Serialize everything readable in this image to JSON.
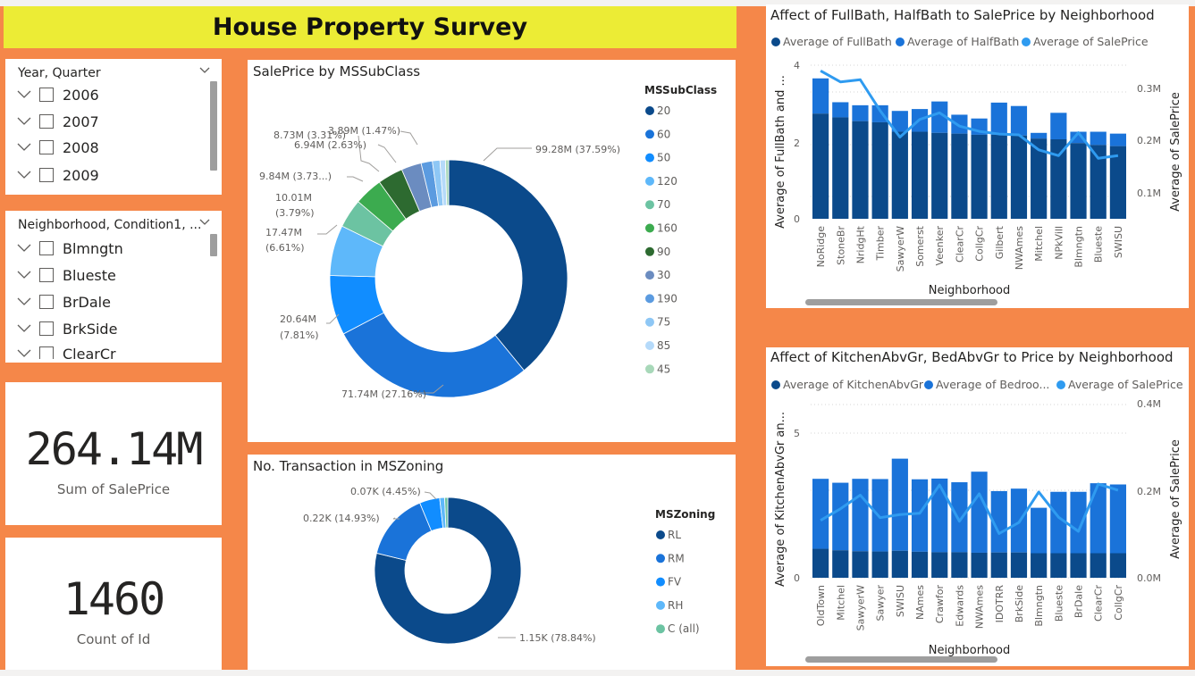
{
  "report_title": "House Property Survey",
  "slicer_year": {
    "title": "Year, Quarter",
    "items": [
      "2006",
      "2007",
      "2008",
      "2009"
    ]
  },
  "slicer_neighborhood": {
    "title": "Neighborhood, Condition1, ...",
    "items": [
      "Blmngtn",
      "Blueste",
      "BrDale",
      "BrkSide",
      "ClearCr"
    ]
  },
  "kpi_saleprice": {
    "value": "264.14M",
    "label": "Sum of SalePrice"
  },
  "kpi_count": {
    "value": "1460",
    "label": "Count of Id"
  },
  "colors": {
    "background": "#f58749",
    "title_bar": "#ecec35",
    "dark_blue": "#0b4a8b",
    "mid_blue": "#1f7fd6",
    "light_blue": "#3aa0ef"
  },
  "saleprice_chart": {
    "title": "SalePrice by MSSubClass",
    "legend_title": "MSSubClass",
    "chart_data": {
      "type": "pie",
      "categories": [
        "20",
        "60",
        "50",
        "120",
        "70",
        "160",
        "90",
        "30",
        "190",
        "75",
        "85",
        "45"
      ],
      "values": [
        99.28,
        71.74,
        20.64,
        17.47,
        10.01,
        9.84,
        8.73,
        6.94,
        3.89,
        2.6,
        1.9,
        1.1
      ],
      "colors": [
        "#0b4a8b",
        "#1a73d9",
        "#118dff",
        "#5eb8fa",
        "#6cc3a2",
        "#3cab4f",
        "#2d6a30",
        "#6b8cc0",
        "#5b9be0",
        "#8ec7f5",
        "#b5dafa",
        "#a8d8b9"
      ],
      "labels": [
        "99.28M (37.59%)",
        "71.74M (27.16%)",
        "20.64M",
        "(7.81%)",
        "17.47M",
        "(6.61%)",
        "10.01M",
        "(3.79%)",
        "9.84M (3.73...)",
        "8.73M (3.31%)",
        "6.94M (2.63%)",
        "3.89M (1.47%)"
      ]
    }
  },
  "mszoning_chart": {
    "title": "No. Transaction in MSZoning",
    "legend_title": "MSZoning",
    "chart_data": {
      "type": "pie",
      "categories": [
        "RL",
        "RM",
        "FV",
        "RH",
        "C (all)"
      ],
      "values": [
        1151,
        218,
        65,
        16,
        10
      ],
      "colors": [
        "#0b4a8b",
        "#1a73d9",
        "#118dff",
        "#5eb8fa",
        "#6cc3a2"
      ],
      "labels": [
        "1.15K (78.84%)",
        "0.22K (14.93%)",
        "0.07K (4.45%)"
      ]
    }
  },
  "fullbath_chart": {
    "title": "Affect of FullBath, HalfBath to SalePrice by Neighborhood",
    "legend": [
      "Average of FullBath",
      "Average of HalfBath",
      "Average of SalePrice"
    ],
    "xlabel": "Neighborhood",
    "ylabel": "Average of FullBath and ...",
    "y2label": "Average of SalePrice",
    "y_ticks": [
      "4",
      "2",
      "0"
    ],
    "y2_ticks": [
      "0.3M",
      "0.2M",
      "0.1M"
    ],
    "chart_data": {
      "type": "bar",
      "categories": [
        "NoRidge",
        "StoneBr",
        "NridgHt",
        "Timber",
        "SawyerW",
        "Somerst",
        "Veenker",
        "ClearCr",
        "CollgCr",
        "Gilbert",
        "NWAmes",
        "Mitchel",
        "NPkVill",
        "Blmngtn",
        "Blueste",
        "SWISU"
      ],
      "series": [
        {
          "name": "Average of FullBath",
          "values": [
            2.78,
            2.68,
            2.58,
            2.55,
            2.3,
            2.3,
            2.27,
            2.25,
            2.22,
            2.22,
            2.2,
            2.12,
            2.1,
            2.0,
            1.95,
            1.92
          ]
        },
        {
          "name": "Average of HalfBath",
          "values": [
            0.93,
            0.4,
            0.42,
            0.45,
            0.55,
            0.6,
            0.83,
            0.5,
            0.43,
            0.85,
            0.78,
            0.15,
            0.7,
            0.3,
            0.35,
            0.33
          ]
        },
        {
          "name": "Average of SalePrice",
          "values": [
            0.335,
            0.31,
            0.315,
            0.245,
            0.185,
            0.225,
            0.24,
            0.21,
            0.198,
            0.192,
            0.19,
            0.156,
            0.143,
            0.195,
            0.137,
            0.143
          ]
        }
      ],
      "ylim": [
        0,
        4.2
      ],
      "y2lim": [
        0,
        0.36
      ]
    }
  },
  "kitchen_chart": {
    "title": "Affect of KitchenAbvGr, BedAbvGr to Price by Neighborhood",
    "legend": [
      "Average of KitchenAbvGr",
      "Average of Bedroo...",
      "Average of SalePrice"
    ],
    "xlabel": "Neighborhood",
    "ylabel": "Average of KitchenAbvGr an...",
    "y2label": "Average of SalePrice",
    "y_ticks": [
      "5",
      "0"
    ],
    "y2_ticks": [
      "0.4M",
      "0.2M",
      "0.0M"
    ],
    "chart_data": {
      "type": "bar",
      "categories": [
        "OldTown",
        "Mitchel",
        "SawyerW",
        "Sawyer",
        "SWISU",
        "NAmes",
        "Crawfor",
        "Edwards",
        "NWAmes",
        "IDOTRR",
        "BrkSide",
        "Blmngtn",
        "Blueste",
        "BrDale",
        "ClearCr",
        "CollgCr"
      ],
      "series": [
        {
          "name": "Average of KitchenAbvGr",
          "values": [
            1.18,
            1.12,
            1.08,
            1.07,
            1.1,
            1.06,
            1.04,
            1.04,
            1.02,
            1.03,
            1.03,
            1.0,
            1.0,
            1.0,
            1.0,
            1.0
          ]
        },
        {
          "name": "Average of Bedroo...",
          "values": [
            2.85,
            2.75,
            2.95,
            2.95,
            3.75,
            2.95,
            3.0,
            2.85,
            3.3,
            2.5,
            2.6,
            1.85,
            2.5,
            2.5,
            2.85,
            2.8
          ]
        },
        {
          "name": "Average of SalePrice",
          "values": [
            0.13,
            0.156,
            0.187,
            0.136,
            0.143,
            0.146,
            0.21,
            0.128,
            0.19,
            0.1,
            0.125,
            0.194,
            0.137,
            0.105,
            0.212,
            0.198
          ]
        }
      ],
      "ylim": [
        0,
        7.2
      ],
      "y2lim": [
        0,
        0.4
      ]
    }
  }
}
